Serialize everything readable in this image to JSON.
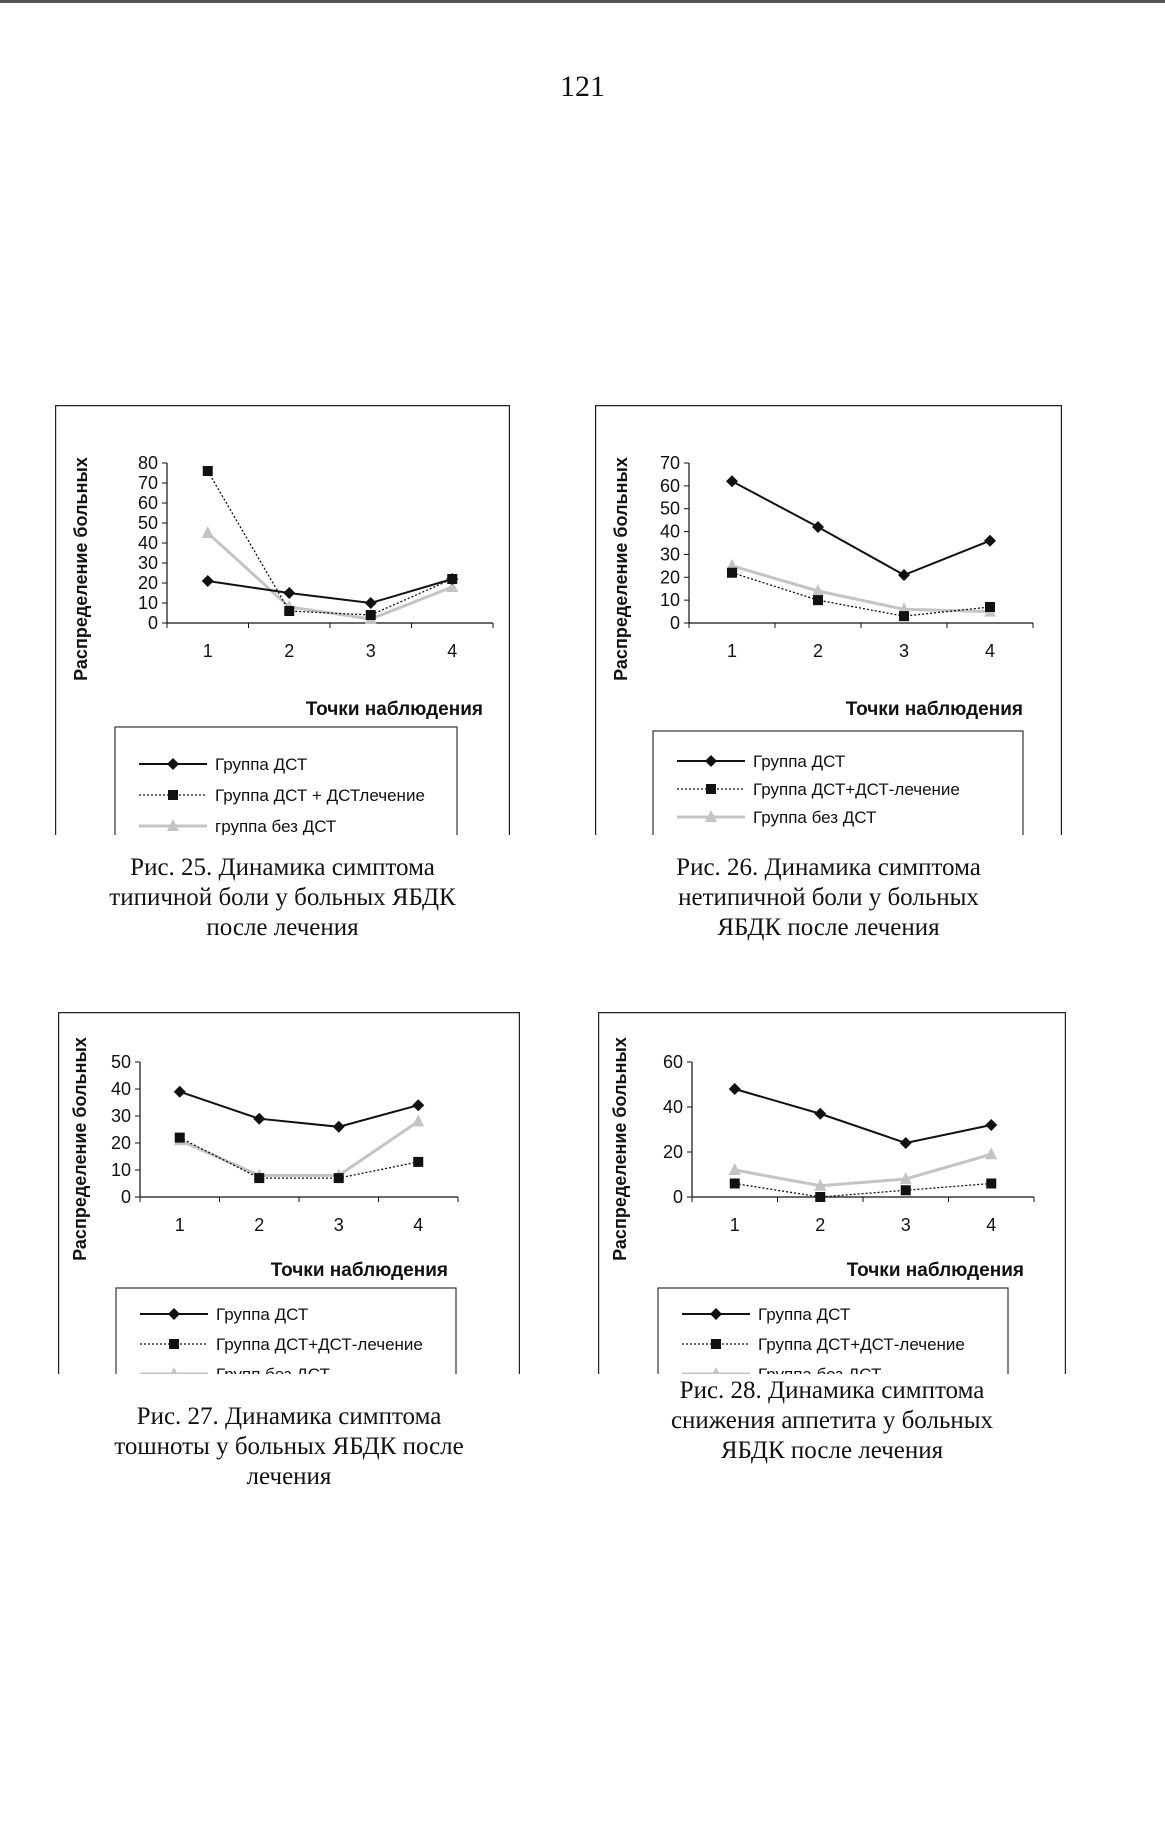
{
  "page": {
    "number": "121"
  },
  "chart_data": [
    {
      "type": "line",
      "figure": "fig25",
      "ylabel": "Распределение больных",
      "xlabel": "Точки наблюдения",
      "categories": [
        "1",
        "2",
        "3",
        "4"
      ],
      "ylim": [
        0,
        80
      ],
      "yticks": [
        0,
        10,
        20,
        30,
        40,
        50,
        60,
        70,
        80
      ],
      "series": [
        {
          "name": "Группа ДСТ",
          "values": [
            21,
            15,
            10,
            22
          ],
          "color": "#111111",
          "style": "solid",
          "marker": "diamond"
        },
        {
          "name": "Группа ДСТ + ДСТлечение",
          "values": [
            76,
            6,
            4,
            22
          ],
          "color": "#111111",
          "style": "dotted",
          "marker": "square"
        },
        {
          "name": "группа без ДСТ",
          "values": [
            45,
            8,
            2,
            18
          ],
          "color": "#c4c4c4",
          "style": "solid",
          "marker": "triangle"
        }
      ],
      "caption": [
        "Рис. 25. Динамика симптома",
        "типичной боли у больных ЯБДК",
        "после лечения"
      ]
    },
    {
      "type": "line",
      "figure": "fig26",
      "ylabel": "Распределение больных",
      "xlabel": "Точки наблюдения",
      "categories": [
        "1",
        "2",
        "3",
        "4"
      ],
      "ylim": [
        0,
        70
      ],
      "yticks": [
        0,
        10,
        20,
        30,
        40,
        50,
        60,
        70
      ],
      "series": [
        {
          "name": "Группа ДСТ",
          "values": [
            62,
            42,
            21,
            36
          ],
          "color": "#111111",
          "style": "solid",
          "marker": "diamond"
        },
        {
          "name": "Группа ДСТ+ДСТ-лечение",
          "values": [
            22,
            10,
            3,
            7
          ],
          "color": "#111111",
          "style": "dotted",
          "marker": "square"
        },
        {
          "name": "Группа без ДСТ",
          "values": [
            25,
            14,
            6,
            5
          ],
          "color": "#c4c4c4",
          "style": "solid",
          "marker": "triangle"
        }
      ],
      "caption": [
        "Рис. 26. Динамика симптома",
        "нетипичной боли у больных",
        "ЯБДК после лечения"
      ]
    },
    {
      "type": "line",
      "figure": "fig27",
      "ylabel": "Распределение больных",
      "xlabel": "Точки наблюдения",
      "categories": [
        "1",
        "2",
        "3",
        "4"
      ],
      "ylim": [
        0,
        50
      ],
      "yticks": [
        0,
        10,
        20,
        30,
        40,
        50
      ],
      "series": [
        {
          "name": "Группа ДСТ",
          "values": [
            39,
            29,
            26,
            34
          ],
          "color": "#111111",
          "style": "solid",
          "marker": "diamond"
        },
        {
          "name": "Группа ДСТ+ДСТ-лечение",
          "values": [
            22,
            7,
            7,
            13
          ],
          "color": "#111111",
          "style": "dotted",
          "marker": "square"
        },
        {
          "name": "Групп без ДСТ",
          "values": [
            21,
            8,
            8,
            28
          ],
          "color": "#c4c4c4",
          "style": "solid",
          "marker": "triangle"
        }
      ],
      "caption": [
        "Рис. 27. Динамика симптома",
        "тошноты у больных ЯБДК после",
        "лечения"
      ]
    },
    {
      "type": "line",
      "figure": "fig28",
      "ylabel": "Распределение больных",
      "xlabel": "Точки наблюдения",
      "categories": [
        "1",
        "2",
        "3",
        "4"
      ],
      "ylim": [
        0,
        60
      ],
      "yticks": [
        0,
        20,
        40,
        60
      ],
      "series": [
        {
          "name": "Группа ДСТ",
          "values": [
            48,
            37,
            24,
            32
          ],
          "color": "#111111",
          "style": "solid",
          "marker": "diamond"
        },
        {
          "name": "Группа ДСТ+ДСТ-лечение",
          "values": [
            6,
            0,
            3,
            6
          ],
          "color": "#111111",
          "style": "dotted",
          "marker": "square"
        },
        {
          "name": "Группа без ДСТ",
          "values": [
            12,
            5,
            8,
            19
          ],
          "color": "#c4c4c4",
          "style": "solid",
          "marker": "triangle"
        }
      ],
      "caption": [
        "Рис. 28. Динамика симптома",
        "снижения аппетита у больных",
        "ЯБДК после лечения"
      ]
    }
  ]
}
